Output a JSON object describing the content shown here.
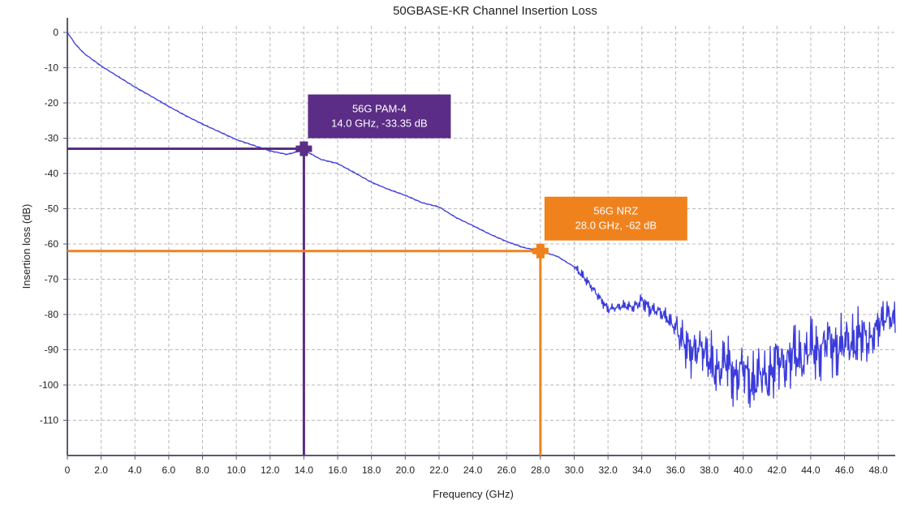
{
  "chart_data": {
    "type": "line",
    "title": "50GBASE-KR Channel Insertion Loss",
    "xlabel": "Frequency (GHz)",
    "ylabel": "Insertion loss (dB)",
    "xlim": [
      0,
      49
    ],
    "ylim": [
      -120,
      0
    ],
    "x_ticks": [
      0,
      2,
      4,
      6,
      8,
      10,
      12,
      14,
      16,
      18,
      20,
      22,
      24,
      26,
      28,
      30,
      32,
      34,
      36,
      38,
      40,
      42,
      44,
      46,
      48
    ],
    "x_tick_labels": [
      "0",
      "2.0",
      "4.0",
      "6.0",
      "8.0",
      "10.0",
      "12.0",
      "14.0",
      "16.0",
      "18.0",
      "20.0",
      "22.0",
      "24.0",
      "26.0",
      "28.0",
      "30.0",
      "32.0",
      "34.0",
      "36.0",
      "38.0",
      "40.0",
      "42.0",
      "44.0",
      "46.0",
      "48.0"
    ],
    "y_ticks": [
      0,
      -10,
      -20,
      -30,
      -40,
      -50,
      -60,
      -70,
      -80,
      -90,
      -100,
      -110
    ],
    "y_tick_labels": [
      "0",
      "-10",
      "-20",
      "-30",
      "-40",
      "-50",
      "-60",
      "-70",
      "-80",
      "-90",
      "-100",
      "-110"
    ],
    "grid": true,
    "series": [
      {
        "color": "#3b3bdc",
        "x": [
          0,
          0.5,
          1,
          2,
          3,
          4,
          5,
          6,
          7,
          8,
          9,
          10,
          11,
          12,
          13,
          14,
          15,
          16,
          17,
          18,
          19,
          20,
          21,
          22,
          23,
          24,
          25,
          26,
          27,
          28,
          29,
          30,
          30.5,
          31,
          32,
          33,
          33.5,
          34,
          34.5,
          35,
          35.5,
          36,
          36.5,
          37,
          37.5,
          38,
          38.5,
          39,
          39.5,
          40,
          40.5,
          41,
          41.5,
          42,
          42.5,
          43,
          43.5,
          44,
          44.5,
          45,
          45.5,
          46,
          46.5,
          47,
          47.5,
          48,
          48.5,
          49
        ],
        "y": [
          0,
          -3.5,
          -6,
          -9.5,
          -12.5,
          -15.5,
          -18.2,
          -21,
          -23.6,
          -26,
          -28.2,
          -30.4,
          -32,
          -33.6,
          -34.6,
          -33.35,
          -36,
          -37.2,
          -39.8,
          -42.5,
          -44.5,
          -46.2,
          -48.3,
          -49.5,
          -52.5,
          -54.8,
          -57.2,
          -59.3,
          -61,
          -62,
          -63.5,
          -66.5,
          -69,
          -72,
          -78.5,
          -77.5,
          -78,
          -76,
          -78.5,
          -79,
          -81,
          -84,
          -88,
          -91,
          -89,
          -93,
          -97,
          -92,
          -99,
          -94,
          -101,
          -96,
          -99,
          -92,
          -95,
          -90,
          -94,
          -88,
          -92,
          -86,
          -91,
          -87,
          -89,
          -85,
          -88,
          -83,
          -80,
          -82
        ]
      }
    ],
    "markers": [
      {
        "name": "56G PAM-4",
        "label_line1": "56G PAM-4",
        "label_line2": "14.0 GHz, -33.35 dB",
        "x": 14.0,
        "y": -33.35,
        "line_y": -33,
        "color": "#5b2d86"
      },
      {
        "name": "56G NRZ",
        "label_line1": "56G NRZ",
        "label_line2": "28.0 GHz, -62 dB",
        "x": 28.0,
        "y": -62,
        "line_y": -62,
        "color": "#f0821e"
      }
    ]
  }
}
